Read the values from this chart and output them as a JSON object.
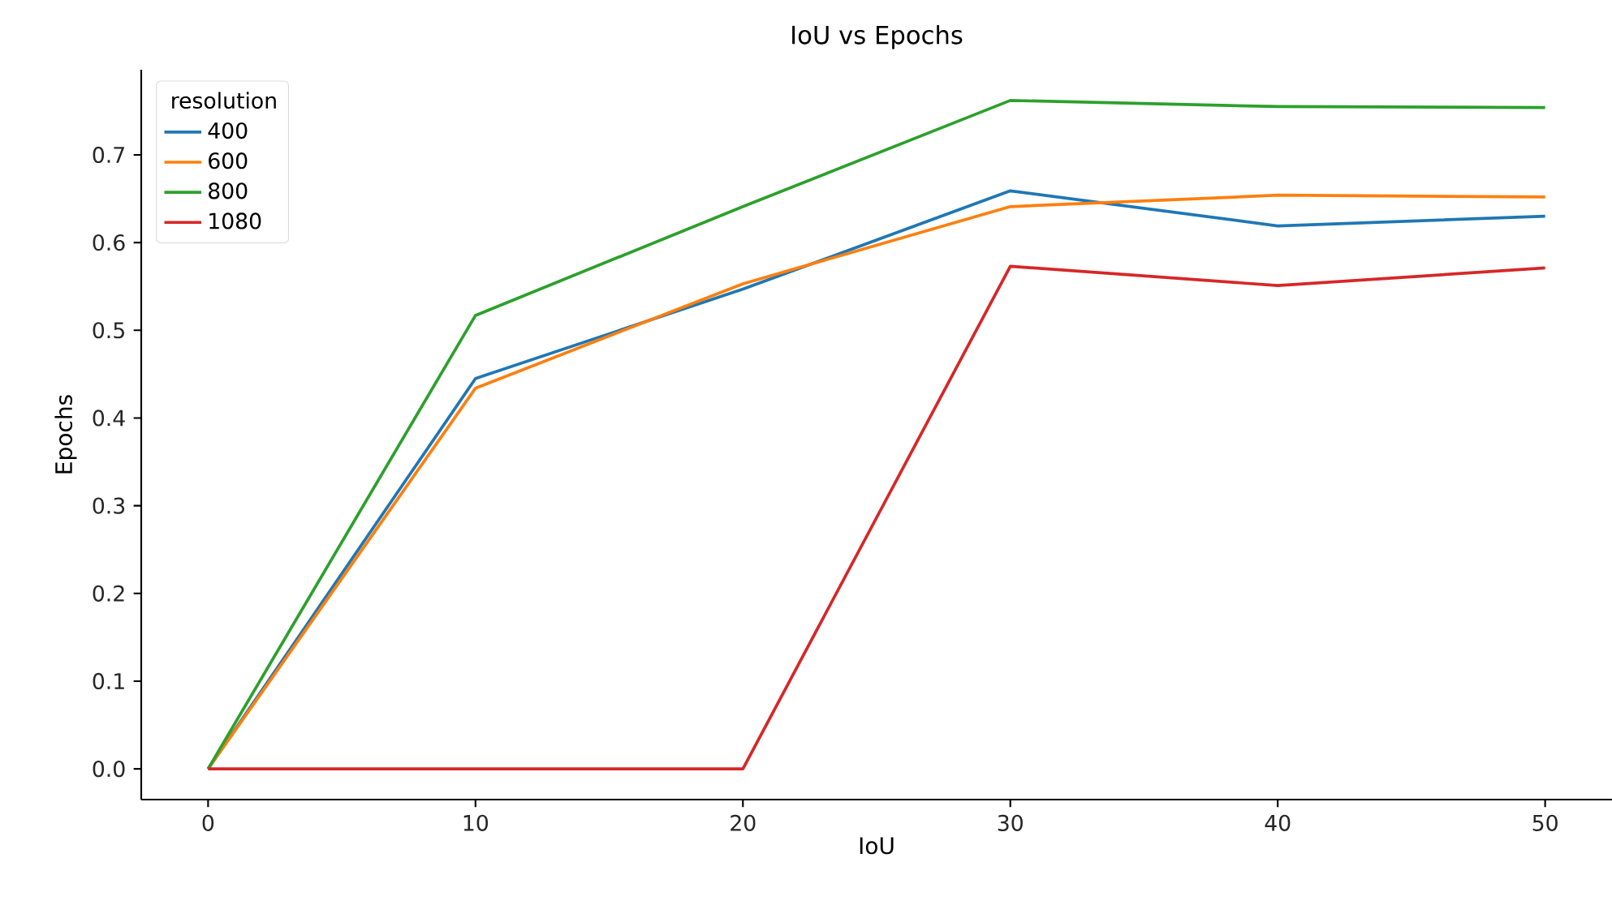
{
  "chart_data": {
    "type": "line",
    "title": "IoU vs Epochs",
    "xlabel": "IoU",
    "ylabel": "Epochs",
    "legend_title": "resolution",
    "legend": "top left",
    "grid": false,
    "x": [
      0,
      10,
      20,
      30,
      40,
      50
    ],
    "xlim": [
      -2.5,
      52.5
    ],
    "xticks": [
      0,
      10,
      20,
      30,
      40,
      50
    ],
    "ylim": [
      -0.035,
      0.797
    ],
    "yticks": [
      {
        "value": 0,
        "label": "0.0"
      },
      0.1,
      0.2,
      0.3,
      0.4,
      0.5,
      0.6,
      0.7
    ],
    "series": [
      {
        "name": "400",
        "color": "#1f77b4",
        "values": [
          0,
          0.445,
          0.547,
          0.659,
          0.619,
          0.63
        ]
      },
      {
        "name": "600",
        "color": "#ff7f0e",
        "values": [
          0,
          0.434,
          0.553,
          0.641,
          0.654,
          0.652
        ]
      },
      {
        "name": "800",
        "color": "#2ca02c",
        "values": [
          0,
          0.517,
          0.641,
          0.762,
          0.755,
          0.754
        ]
      },
      {
        "name": "1080",
        "color": "#d62728",
        "values": [
          0,
          0,
          0,
          0.573,
          0.551,
          0.571
        ]
      }
    ]
  }
}
